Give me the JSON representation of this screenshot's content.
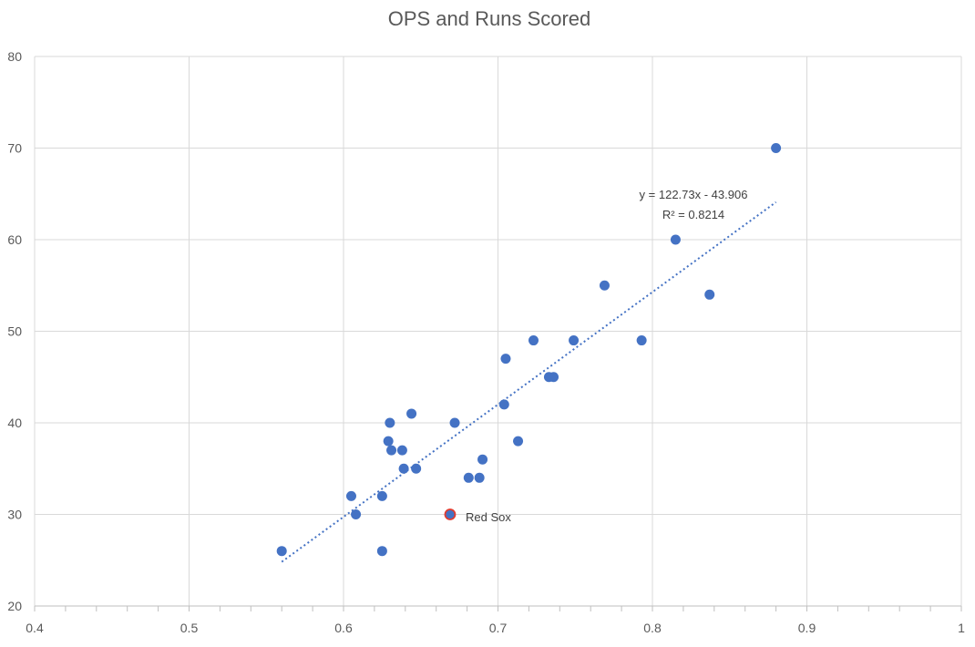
{
  "chart_data": {
    "type": "scatter",
    "title": "OPS and Runs Scored",
    "xlabel": "",
    "ylabel": "",
    "xlim": [
      0.4,
      1
    ],
    "ylim": [
      20,
      80
    ],
    "x_ticks": [
      "0.4",
      "0.5",
      "0.6",
      "0.7",
      "0.8",
      "0.9",
      "1"
    ],
    "y_ticks": [
      "20",
      "30",
      "40",
      "50",
      "60",
      "70",
      "80"
    ],
    "grid": true,
    "legend": "none",
    "colors": {
      "points": "#4472c4",
      "highlight_fill": "#4472c4",
      "highlight_stroke": "#e03c31",
      "trendline": "#4472c4"
    },
    "points": [
      {
        "x": 0.56,
        "y": 26
      },
      {
        "x": 0.605,
        "y": 32
      },
      {
        "x": 0.608,
        "y": 30
      },
      {
        "x": 0.625,
        "y": 32
      },
      {
        "x": 0.625,
        "y": 26
      },
      {
        "x": 0.629,
        "y": 38
      },
      {
        "x": 0.63,
        "y": 40
      },
      {
        "x": 0.631,
        "y": 37
      },
      {
        "x": 0.638,
        "y": 37
      },
      {
        "x": 0.639,
        "y": 35
      },
      {
        "x": 0.644,
        "y": 41
      },
      {
        "x": 0.647,
        "y": 35
      },
      {
        "x": 0.672,
        "y": 40
      },
      {
        "x": 0.681,
        "y": 34
      },
      {
        "x": 0.688,
        "y": 34
      },
      {
        "x": 0.69,
        "y": 36
      },
      {
        "x": 0.704,
        "y": 42
      },
      {
        "x": 0.705,
        "y": 47
      },
      {
        "x": 0.713,
        "y": 38
      },
      {
        "x": 0.723,
        "y": 49
      },
      {
        "x": 0.733,
        "y": 45
      },
      {
        "x": 0.736,
        "y": 45
      },
      {
        "x": 0.749,
        "y": 49
      },
      {
        "x": 0.769,
        "y": 55
      },
      {
        "x": 0.793,
        "y": 49
      },
      {
        "x": 0.815,
        "y": 60
      },
      {
        "x": 0.837,
        "y": 54
      },
      {
        "x": 0.88,
        "y": 70
      }
    ],
    "highlight": {
      "x": 0.669,
      "y": 30,
      "label": "Red Sox"
    },
    "trendline": {
      "slope": 122.73,
      "intercept": -43.906,
      "x_range": [
        0.56,
        0.88
      ],
      "equation": "y = 122.73x - 43.906",
      "r_squared": "R² = 0.8214"
    }
  }
}
